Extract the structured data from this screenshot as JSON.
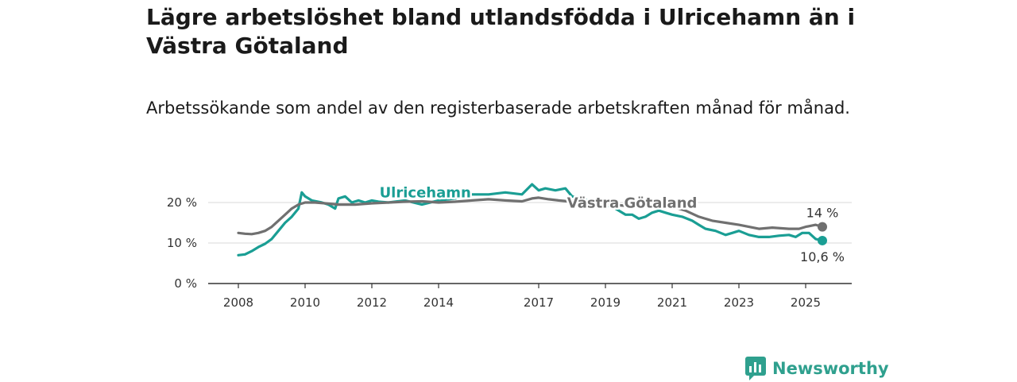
{
  "title": "Lägre arbetslöshet bland utlandsfödda i Ulricehamn än i Västra Götaland",
  "subtitle": "Arbetssökande som andel av den registerbaserade arbetskraften månad för månad.",
  "brand": {
    "name": "Newsworthy",
    "icon": "newsworthy-logo-icon",
    "color": "#2fa08e"
  },
  "chart_data": {
    "type": "line",
    "title": "Lägre arbetslöshet bland utlandsfödda i Ulricehamn än i Västra Götaland",
    "subtitle": "Arbetssökande som andel av den registerbaserade arbetskraften månad för månad.",
    "xlabel": "",
    "ylabel": "",
    "x_ticks": [
      "2008",
      "2010",
      "2012",
      "2014",
      "2017",
      "2019",
      "2021",
      "2023",
      "2025"
    ],
    "x_tick_values": [
      2008,
      2010,
      2012,
      2014,
      2017,
      2019,
      2021,
      2023,
      2025
    ],
    "y_ticks": [
      "0 %",
      "10 %",
      "20 %"
    ],
    "y_tick_values": [
      0,
      10,
      20
    ],
    "ylim": [
      0,
      22
    ],
    "grid": true,
    "legend": "inline labels",
    "series": [
      {
        "name": "Ulricehamn",
        "color": "#1a9e94",
        "end_label": "10,6 %",
        "points": [
          [
            2008.0,
            7.0
          ],
          [
            2008.2,
            7.2
          ],
          [
            2008.4,
            8.0
          ],
          [
            2008.6,
            9.0
          ],
          [
            2008.8,
            9.8
          ],
          [
            2009.0,
            11.0
          ],
          [
            2009.2,
            13.0
          ],
          [
            2009.4,
            15.0
          ],
          [
            2009.6,
            16.5
          ],
          [
            2009.8,
            18.5
          ],
          [
            2009.9,
            22.5
          ],
          [
            2010.0,
            21.5
          ],
          [
            2010.2,
            20.5
          ],
          [
            2010.5,
            20.0
          ],
          [
            2010.7,
            19.5
          ],
          [
            2010.9,
            18.5
          ],
          [
            2011.0,
            21.0
          ],
          [
            2011.2,
            21.5
          ],
          [
            2011.4,
            20.0
          ],
          [
            2011.6,
            20.5
          ],
          [
            2011.8,
            20.0
          ],
          [
            2012.0,
            20.5
          ],
          [
            2012.2,
            20.2
          ],
          [
            2012.5,
            20.0
          ],
          [
            2013.0,
            20.5
          ],
          [
            2013.5,
            19.5
          ],
          [
            2014.0,
            20.5
          ],
          [
            2014.5,
            21.0
          ],
          [
            2015.0,
            22.0
          ],
          [
            2015.5,
            22.0
          ],
          [
            2016.0,
            22.5
          ],
          [
            2016.5,
            22.0
          ],
          [
            2016.8,
            24.5
          ],
          [
            2017.0,
            23.0
          ],
          [
            2017.2,
            23.5
          ],
          [
            2017.5,
            23.0
          ],
          [
            2017.8,
            23.5
          ],
          [
            2018.0,
            21.5
          ],
          [
            2018.3,
            21.0
          ],
          [
            2018.6,
            20.0
          ],
          [
            2019.0,
            19.5
          ],
          [
            2019.3,
            18.5
          ],
          [
            2019.6,
            17.0
          ],
          [
            2019.8,
            17.0
          ],
          [
            2020.0,
            16.0
          ],
          [
            2020.2,
            16.5
          ],
          [
            2020.4,
            17.5
          ],
          [
            2020.6,
            18.0
          ],
          [
            2020.8,
            17.5
          ],
          [
            2021.0,
            17.0
          ],
          [
            2021.3,
            16.5
          ],
          [
            2021.6,
            15.5
          ],
          [
            2021.8,
            14.5
          ],
          [
            2022.0,
            13.5
          ],
          [
            2022.3,
            13.0
          ],
          [
            2022.6,
            12.0
          ],
          [
            2022.8,
            12.5
          ],
          [
            2023.0,
            13.0
          ],
          [
            2023.3,
            12.0
          ],
          [
            2023.6,
            11.5
          ],
          [
            2023.9,
            11.5
          ],
          [
            2024.2,
            11.8
          ],
          [
            2024.5,
            12.0
          ],
          [
            2024.7,
            11.5
          ],
          [
            2024.9,
            12.5
          ],
          [
            2025.1,
            12.5
          ],
          [
            2025.3,
            11.0
          ],
          [
            2025.5,
            10.6
          ]
        ]
      },
      {
        "name": "Västra Götaland",
        "color": "#707070",
        "end_label": "14 %",
        "points": [
          [
            2008.0,
            12.5
          ],
          [
            2008.2,
            12.3
          ],
          [
            2008.4,
            12.2
          ],
          [
            2008.6,
            12.5
          ],
          [
            2008.8,
            13.0
          ],
          [
            2009.0,
            14.0
          ],
          [
            2009.2,
            15.5
          ],
          [
            2009.4,
            17.0
          ],
          [
            2009.6,
            18.5
          ],
          [
            2009.8,
            19.5
          ],
          [
            2010.0,
            20.0
          ],
          [
            2010.3,
            20.0
          ],
          [
            2010.6,
            19.8
          ],
          [
            2011.0,
            19.5
          ],
          [
            2011.5,
            19.5
          ],
          [
            2012.0,
            19.8
          ],
          [
            2012.5,
            20.0
          ],
          [
            2013.0,
            20.2
          ],
          [
            2013.5,
            20.3
          ],
          [
            2014.0,
            20.0
          ],
          [
            2014.5,
            20.2
          ],
          [
            2015.0,
            20.5
          ],
          [
            2015.5,
            20.8
          ],
          [
            2016.0,
            20.5
          ],
          [
            2016.5,
            20.3
          ],
          [
            2016.8,
            21.0
          ],
          [
            2017.0,
            21.2
          ],
          [
            2017.3,
            20.8
          ],
          [
            2017.6,
            20.5
          ],
          [
            2018.0,
            20.2
          ],
          [
            2018.4,
            20.0
          ],
          [
            2018.8,
            19.8
          ],
          [
            2019.2,
            19.5
          ],
          [
            2019.6,
            19.2
          ],
          [
            2020.0,
            19.0
          ],
          [
            2020.4,
            19.5
          ],
          [
            2020.8,
            19.5
          ],
          [
            2021.0,
            19.0
          ],
          [
            2021.4,
            18.0
          ],
          [
            2021.8,
            16.5
          ],
          [
            2022.2,
            15.5
          ],
          [
            2022.6,
            15.0
          ],
          [
            2023.0,
            14.5
          ],
          [
            2023.3,
            14.0
          ],
          [
            2023.6,
            13.5
          ],
          [
            2024.0,
            13.8
          ],
          [
            2024.5,
            13.5
          ],
          [
            2024.8,
            13.5
          ],
          [
            2025.0,
            14.0
          ],
          [
            2025.3,
            14.5
          ],
          [
            2025.5,
            14.0
          ]
        ]
      }
    ],
    "annotations": [
      {
        "text": "Ulricehamn",
        "series": "Ulricehamn",
        "x": 2013.6,
        "y": 21.3
      },
      {
        "text": "Västra Götaland",
        "series": "Västra Götaland",
        "x": 2019.8,
        "y": 18.7
      }
    ]
  }
}
